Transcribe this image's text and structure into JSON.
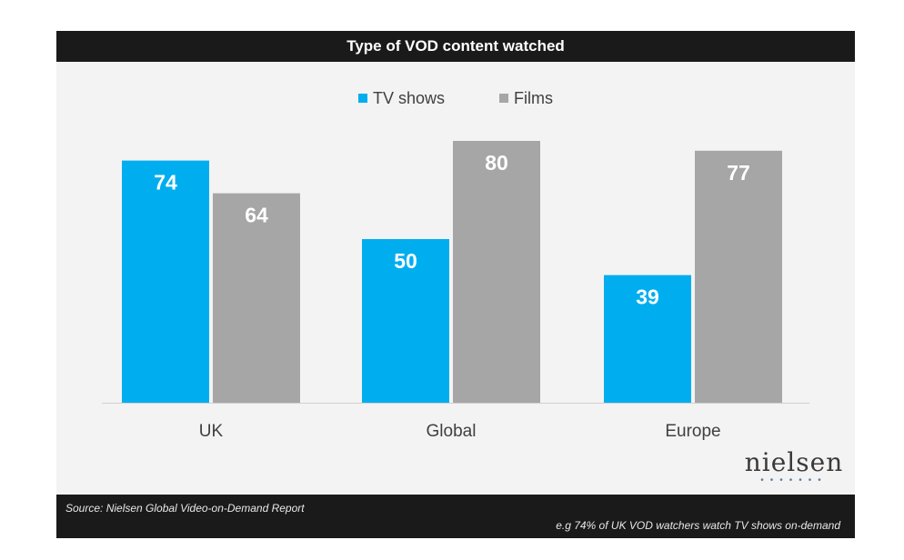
{
  "chart_data": {
    "type": "bar",
    "title": "Type of VOD content watched",
    "categories": [
      "UK",
      "Global",
      "Europe"
    ],
    "series": [
      {
        "name": "TV shows",
        "color": "#00aeef",
        "values": [
          74,
          50,
          39
        ]
      },
      {
        "name": "Films",
        "color": "#a6a6a6",
        "values": [
          64,
          80,
          77
        ]
      }
    ],
    "xlabel": "",
    "ylabel": "",
    "ylim": [
      0,
      100
    ],
    "grid": false,
    "legend_position": "top-center"
  },
  "branding": {
    "logo_text": "nielsen"
  },
  "footer": {
    "source": "Source: Nielsen Global Video-on-Demand Report",
    "note": "e.g  74% of UK VOD watchers watch TV shows on-demand"
  },
  "colors": {
    "frame_bg": "#f3f3f3",
    "bar_text": "#ffffff",
    "header_bg": "#1a1a1a"
  }
}
